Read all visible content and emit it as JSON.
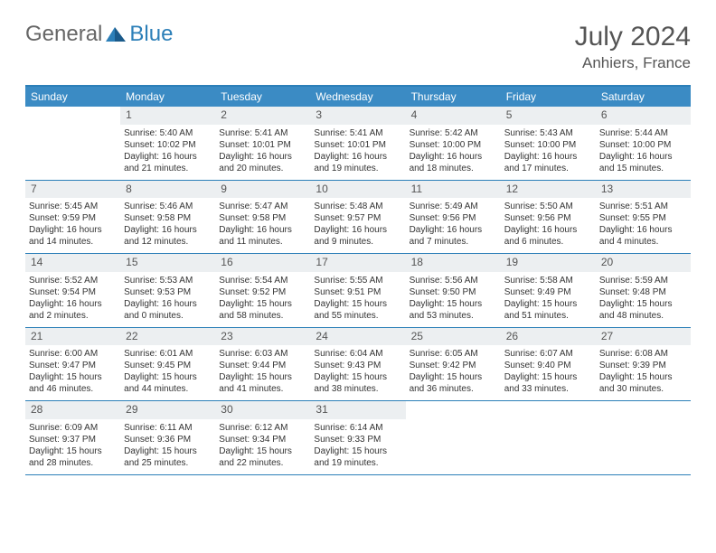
{
  "logo": {
    "text1": "General",
    "text2": "Blue"
  },
  "title": "July 2024",
  "location": "Anhiers, France",
  "colors": {
    "header_bg": "#3b8bc4",
    "border": "#2c7fb8",
    "daynum_bg": "#eceff1",
    "text": "#333333",
    "title_text": "#555555"
  },
  "weekdays": [
    "Sunday",
    "Monday",
    "Tuesday",
    "Wednesday",
    "Thursday",
    "Friday",
    "Saturday"
  ],
  "weeks": [
    [
      {
        "n": "",
        "empty": true
      },
      {
        "n": "1",
        "sr": "5:40 AM",
        "ss": "10:02 PM",
        "dl": "16 hours and 21 minutes."
      },
      {
        "n": "2",
        "sr": "5:41 AM",
        "ss": "10:01 PM",
        "dl": "16 hours and 20 minutes."
      },
      {
        "n": "3",
        "sr": "5:41 AM",
        "ss": "10:01 PM",
        "dl": "16 hours and 19 minutes."
      },
      {
        "n": "4",
        "sr": "5:42 AM",
        "ss": "10:00 PM",
        "dl": "16 hours and 18 minutes."
      },
      {
        "n": "5",
        "sr": "5:43 AM",
        "ss": "10:00 PM",
        "dl": "16 hours and 17 minutes."
      },
      {
        "n": "6",
        "sr": "5:44 AM",
        "ss": "10:00 PM",
        "dl": "16 hours and 15 minutes."
      }
    ],
    [
      {
        "n": "7",
        "sr": "5:45 AM",
        "ss": "9:59 PM",
        "dl": "16 hours and 14 minutes."
      },
      {
        "n": "8",
        "sr": "5:46 AM",
        "ss": "9:58 PM",
        "dl": "16 hours and 12 minutes."
      },
      {
        "n": "9",
        "sr": "5:47 AM",
        "ss": "9:58 PM",
        "dl": "16 hours and 11 minutes."
      },
      {
        "n": "10",
        "sr": "5:48 AM",
        "ss": "9:57 PM",
        "dl": "16 hours and 9 minutes."
      },
      {
        "n": "11",
        "sr": "5:49 AM",
        "ss": "9:56 PM",
        "dl": "16 hours and 7 minutes."
      },
      {
        "n": "12",
        "sr": "5:50 AM",
        "ss": "9:56 PM",
        "dl": "16 hours and 6 minutes."
      },
      {
        "n": "13",
        "sr": "5:51 AM",
        "ss": "9:55 PM",
        "dl": "16 hours and 4 minutes."
      }
    ],
    [
      {
        "n": "14",
        "sr": "5:52 AM",
        "ss": "9:54 PM",
        "dl": "16 hours and 2 minutes."
      },
      {
        "n": "15",
        "sr": "5:53 AM",
        "ss": "9:53 PM",
        "dl": "16 hours and 0 minutes."
      },
      {
        "n": "16",
        "sr": "5:54 AM",
        "ss": "9:52 PM",
        "dl": "15 hours and 58 minutes."
      },
      {
        "n": "17",
        "sr": "5:55 AM",
        "ss": "9:51 PM",
        "dl": "15 hours and 55 minutes."
      },
      {
        "n": "18",
        "sr": "5:56 AM",
        "ss": "9:50 PM",
        "dl": "15 hours and 53 minutes."
      },
      {
        "n": "19",
        "sr": "5:58 AM",
        "ss": "9:49 PM",
        "dl": "15 hours and 51 minutes."
      },
      {
        "n": "20",
        "sr": "5:59 AM",
        "ss": "9:48 PM",
        "dl": "15 hours and 48 minutes."
      }
    ],
    [
      {
        "n": "21",
        "sr": "6:00 AM",
        "ss": "9:47 PM",
        "dl": "15 hours and 46 minutes."
      },
      {
        "n": "22",
        "sr": "6:01 AM",
        "ss": "9:45 PM",
        "dl": "15 hours and 44 minutes."
      },
      {
        "n": "23",
        "sr": "6:03 AM",
        "ss": "9:44 PM",
        "dl": "15 hours and 41 minutes."
      },
      {
        "n": "24",
        "sr": "6:04 AM",
        "ss": "9:43 PM",
        "dl": "15 hours and 38 minutes."
      },
      {
        "n": "25",
        "sr": "6:05 AM",
        "ss": "9:42 PM",
        "dl": "15 hours and 36 minutes."
      },
      {
        "n": "26",
        "sr": "6:07 AM",
        "ss": "9:40 PM",
        "dl": "15 hours and 33 minutes."
      },
      {
        "n": "27",
        "sr": "6:08 AM",
        "ss": "9:39 PM",
        "dl": "15 hours and 30 minutes."
      }
    ],
    [
      {
        "n": "28",
        "sr": "6:09 AM",
        "ss": "9:37 PM",
        "dl": "15 hours and 28 minutes."
      },
      {
        "n": "29",
        "sr": "6:11 AM",
        "ss": "9:36 PM",
        "dl": "15 hours and 25 minutes."
      },
      {
        "n": "30",
        "sr": "6:12 AM",
        "ss": "9:34 PM",
        "dl": "15 hours and 22 minutes."
      },
      {
        "n": "31",
        "sr": "6:14 AM",
        "ss": "9:33 PM",
        "dl": "15 hours and 19 minutes."
      },
      {
        "n": "",
        "empty": true
      },
      {
        "n": "",
        "empty": true
      },
      {
        "n": "",
        "empty": true
      }
    ]
  ],
  "labels": {
    "sunrise": "Sunrise:",
    "sunset": "Sunset:",
    "daylight": "Daylight:"
  }
}
